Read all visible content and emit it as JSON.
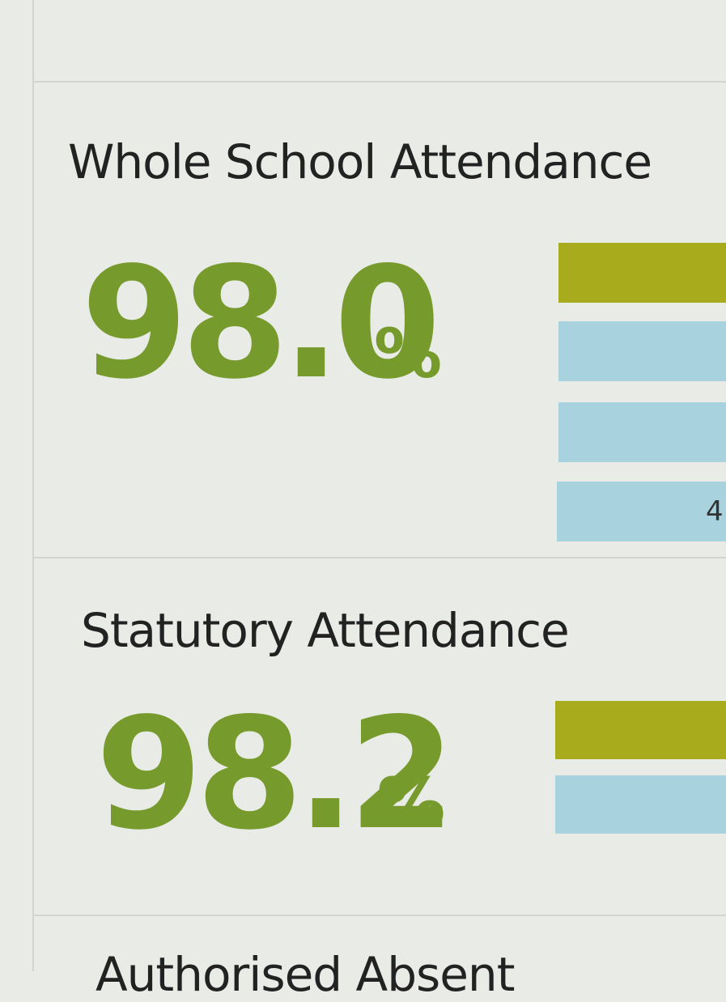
{
  "sections": [
    {
      "title": "Whole School Attendance",
      "value": "98.0",
      "unit": "%",
      "bar_label": "4"
    },
    {
      "title": "Statutory Attendance",
      "value": "98.2",
      "unit": "%"
    },
    {
      "title": "Authorised Absent"
    }
  ]
}
